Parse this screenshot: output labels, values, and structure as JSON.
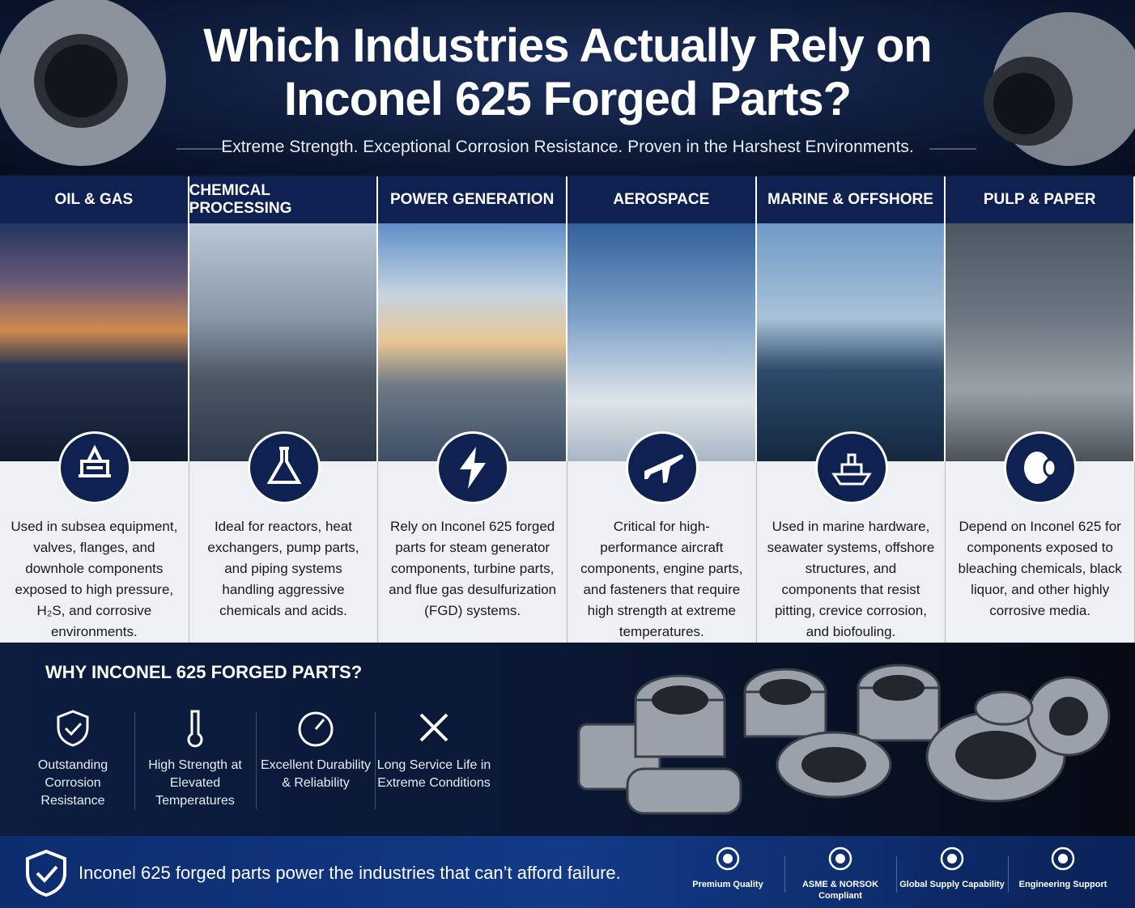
{
  "header": {
    "title": "Which Industries Actually Rely on Inconel 625 Forged Parts?",
    "subtitle": "Extreme Strength. Exceptional Corrosion Resistance. Proven in the Harshest Environments."
  },
  "industries": [
    {
      "name": "OIL & GAS",
      "description": "Used in subsea equipment, valves, flanges, and downhole components exposed to high pressure, H₂S, and corrosive environments."
    },
    {
      "name": "CHEMICAL PROCESSING",
      "description": "Ideal for reactors, heat exchangers, pump parts, and piping systems handling aggressive chemicals and acids."
    },
    {
      "name": "POWER GENERATION",
      "description": "Rely on Inconel 625 forged parts for steam generator components, turbine parts, and flue gas desulfurization (FGD) systems."
    },
    {
      "name": "AEROSPACE",
      "description": "Critical for high-performance aircraft components, engine parts, and fasteners that require high strength at extreme temperatures."
    },
    {
      "name": "MARINE & OFFSHORE",
      "description": "Used in marine hardware, seawater systems, offshore structures, and components that resist pitting, crevice corrosion, and biofouling."
    },
    {
      "name": "PULP & PAPER",
      "description": "Depend on Inconel 625 for components exposed to bleaching chemicals, black liquor, and other highly corrosive media."
    }
  ],
  "why": {
    "title": "WHY INCONEL 625 FORGED PARTS?",
    "items": [
      "Outstanding Corrosion Resistance",
      "High Strength at Elevated Temperatures",
      "Excellent Durability & Reliability",
      "Long Service Life in Extreme Conditions"
    ]
  },
  "footer": {
    "tagline": "Inconel 625 forged parts power the industries that can’t afford failure.",
    "badges": [
      "Premium Quality",
      "ASME & NORSOK Compliant",
      "Global Supply Capability",
      "Engineering Support"
    ]
  }
}
